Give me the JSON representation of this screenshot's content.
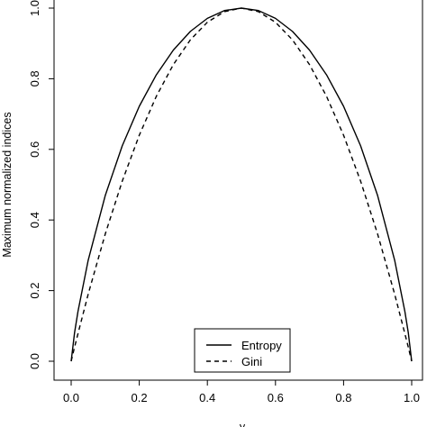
{
  "chart_data": {
    "type": "line",
    "title": "",
    "xlabel": "y",
    "ylabel": "Maximum normalized indices",
    "xlim": [
      0,
      1
    ],
    "ylim": [
      0,
      1
    ],
    "grid": false,
    "legend_position": "bottom-center",
    "x_ticks": [
      "0.0",
      "0.2",
      "0.4",
      "0.6",
      "0.8",
      "1.0"
    ],
    "y_ticks": [
      "0.0",
      "0.2",
      "0.4",
      "0.6",
      "0.8",
      "1.0"
    ],
    "x": [
      0,
      0.01,
      0.02,
      0.05,
      0.1,
      0.15,
      0.2,
      0.25,
      0.3,
      0.35,
      0.4,
      0.45,
      0.5,
      0.55,
      0.6,
      0.65,
      0.7,
      0.75,
      0.8,
      0.85,
      0.9,
      0.95,
      0.98,
      0.99,
      1
    ],
    "series": [
      {
        "name": "Entropy",
        "style": "solid",
        "values": [
          0,
          0.081,
          0.141,
          0.286,
          0.469,
          0.61,
          0.722,
          0.811,
          0.881,
          0.934,
          0.971,
          0.993,
          1,
          0.993,
          0.971,
          0.934,
          0.881,
          0.811,
          0.722,
          0.61,
          0.469,
          0.286,
          0.141,
          0.081,
          0
        ]
      },
      {
        "name": "Gini",
        "style": "dashed",
        "values": [
          0,
          0.04,
          0.078,
          0.19,
          0.36,
          0.51,
          0.64,
          0.75,
          0.84,
          0.91,
          0.96,
          0.99,
          1,
          0.99,
          0.96,
          0.91,
          0.84,
          0.75,
          0.64,
          0.51,
          0.36,
          0.19,
          0.078,
          0.04,
          0
        ]
      }
    ]
  },
  "colors": {
    "line": "#000000",
    "axis": "#000000",
    "background": "#ffffff"
  }
}
